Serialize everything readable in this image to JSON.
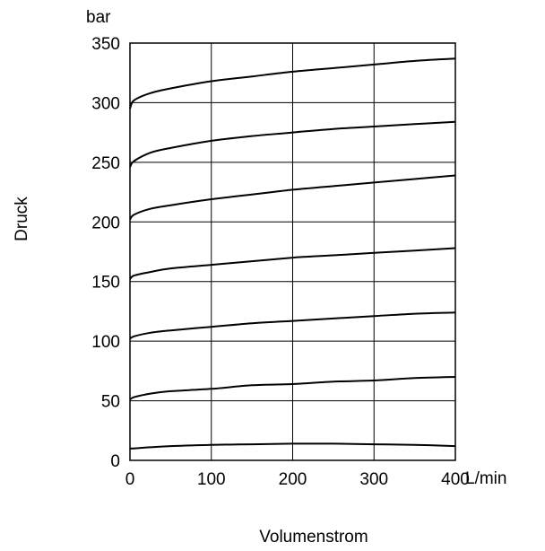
{
  "chart_data": {
    "type": "line",
    "title": "",
    "xlabel": "Volumenstrom",
    "ylabel": "Druck",
    "x_unit": "L/min",
    "y_unit": "bar",
    "xlim": [
      0,
      400
    ],
    "ylim": [
      0,
      350
    ],
    "x_ticks": [
      0,
      100,
      200,
      300,
      400
    ],
    "y_ticks": [
      0,
      50,
      100,
      150,
      200,
      250,
      300,
      350
    ],
    "x_tick_labels": [
      "0",
      "100",
      "200",
      "300",
      "400"
    ],
    "y_tick_labels": [
      "0",
      "50",
      "100",
      "150",
      "200",
      "250",
      "300",
      "350"
    ],
    "x_gridlines": [
      100,
      200,
      300
    ],
    "y_gridlines": [
      50,
      100,
      150,
      200,
      250,
      300
    ],
    "grid": true,
    "legend": "none",
    "series": [
      {
        "x": [
          0,
          5,
          25,
          50,
          100,
          150,
          200,
          250,
          300,
          350,
          400
        ],
        "values": [
          10,
          10,
          11,
          12,
          13,
          13.5,
          14,
          14,
          13.5,
          13,
          12
        ]
      },
      {
        "x": [
          0,
          5,
          25,
          50,
          100,
          150,
          200,
          250,
          300,
          350,
          400
        ],
        "values": [
          51,
          53,
          56,
          58,
          60,
          63,
          64,
          66,
          67,
          69,
          70
        ]
      },
      {
        "x": [
          0,
          5,
          25,
          50,
          100,
          150,
          200,
          250,
          300,
          350,
          400
        ],
        "values": [
          102,
          104,
          107,
          109,
          112,
          115,
          117,
          119,
          121,
          123,
          124
        ]
      },
      {
        "x": [
          0,
          5,
          25,
          50,
          100,
          150,
          200,
          250,
          300,
          350,
          400
        ],
        "values": [
          152,
          155,
          158,
          161,
          164,
          167,
          170,
          172,
          174,
          176,
          178
        ]
      },
      {
        "x": [
          0,
          5,
          25,
          50,
          100,
          150,
          200,
          250,
          300,
          350,
          400
        ],
        "values": [
          202,
          206,
          211,
          214,
          219,
          223,
          227,
          230,
          233,
          236,
          239
        ]
      },
      {
        "x": [
          0,
          5,
          25,
          50,
          100,
          150,
          200,
          250,
          300,
          350,
          400
        ],
        "values": [
          246,
          251,
          258,
          262,
          268,
          272,
          275,
          278,
          280,
          282,
          284
        ]
      },
      {
        "x": [
          0,
          5,
          25,
          50,
          100,
          150,
          200,
          250,
          300,
          350,
          400
        ],
        "values": [
          295,
          302,
          308,
          312,
          318,
          322,
          326,
          329,
          332,
          335,
          337
        ]
      }
    ],
    "line_color": "#000000"
  }
}
